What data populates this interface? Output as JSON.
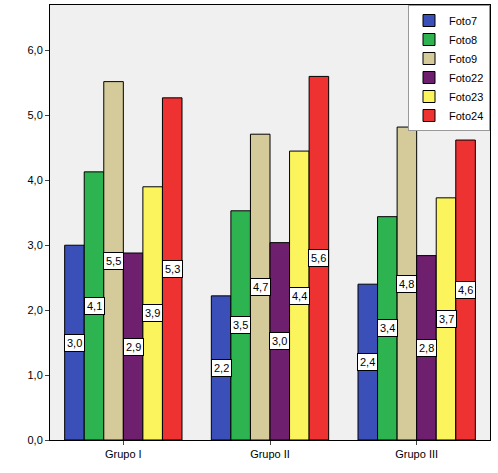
{
  "chart_data": {
    "type": "bar",
    "categories": [
      "Grupo I",
      "Grupo II",
      "Grupo III"
    ],
    "series": [
      {
        "name": "Foto7",
        "color": "#3b4fb8",
        "values": [
          3.0,
          2.22,
          2.4
        ],
        "value_labels": [
          "3,0",
          "2,2",
          "2,4"
        ]
      },
      {
        "name": "Foto8",
        "color": "#2db34f",
        "values": [
          4.13,
          3.53,
          3.44
        ],
        "value_labels": [
          "4,1",
          "3,5",
          "3,4"
        ]
      },
      {
        "name": "Foto9",
        "color": "#d5cb9a",
        "values": [
          5.52,
          4.71,
          4.82
        ],
        "value_labels": [
          "5,5",
          "4,7",
          "4,8"
        ]
      },
      {
        "name": "Foto22",
        "color": "#6e1f6e",
        "values": [
          2.88,
          3.04,
          2.84
        ],
        "value_labels": [
          "2,9",
          "3,0",
          "2,8"
        ]
      },
      {
        "name": "Foto23",
        "color": "#fbf45c",
        "values": [
          3.9,
          4.45,
          3.73
        ],
        "value_labels": [
          "3,9",
          "4,4",
          "3,7"
        ]
      },
      {
        "name": "Foto24",
        "color": "#ee3131",
        "values": [
          5.27,
          5.6,
          4.62
        ],
        "value_labels": [
          "5,3",
          "5,6",
          "4,6"
        ]
      }
    ],
    "ylim": [
      0,
      6.7
    ],
    "yticks": [
      {
        "value": 0,
        "label": "0,0"
      },
      {
        "value": 1,
        "label": "1,0"
      },
      {
        "value": 2,
        "label": "2,0"
      },
      {
        "value": 3,
        "label": "3,0"
      },
      {
        "value": 4,
        "label": "4,0"
      },
      {
        "value": 5,
        "label": "5,0"
      },
      {
        "value": 6,
        "label": "6,0"
      }
    ],
    "grid": false,
    "legend": "top right",
    "data_labels": true
  }
}
